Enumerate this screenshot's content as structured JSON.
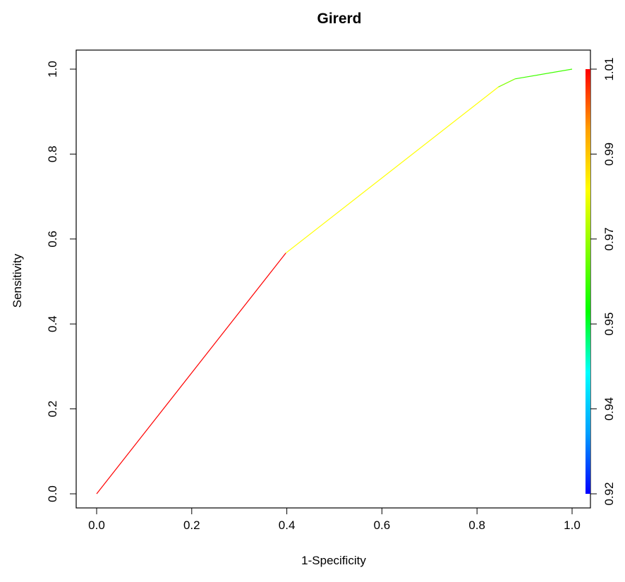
{
  "chart_data": {
    "type": "line",
    "title": "Girerd",
    "xlabel": "1-Specificity",
    "ylabel": "Sensitivity",
    "xlim": [
      0.0,
      1.0
    ],
    "ylim": [
      0.0,
      1.0
    ],
    "x_ticks": [
      "0.0",
      "0.2",
      "0.4",
      "0.6",
      "0.8",
      "1.0"
    ],
    "y_ticks": [
      "0.0",
      "0.2",
      "0.4",
      "0.6",
      "0.8",
      "1.0"
    ],
    "grid": false,
    "segments": [
      {
        "x1": 0.0,
        "y1": 0.0,
        "x2": 0.398,
        "y2": 0.567,
        "color": "#ff0000"
      },
      {
        "x1": 0.398,
        "y1": 0.567,
        "x2": 0.845,
        "y2": 0.958,
        "color": "#ffff00"
      },
      {
        "x1": 0.845,
        "y1": 0.958,
        "x2": 0.88,
        "y2": 0.977,
        "color": "#80ff00"
      },
      {
        "x1": 0.88,
        "y1": 0.977,
        "x2": 1.0,
        "y2": 1.0,
        "color": "#40ff00"
      }
    ],
    "colorbar": {
      "ticks": [
        "0.92",
        "0.94",
        "0.95",
        "0.97",
        "0.99",
        "1.01"
      ],
      "gradient_colors": [
        "#0000ff",
        "#00a0ff",
        "#00ffff",
        "#00ff00",
        "#80ff00",
        "#ffff00",
        "#ffa000",
        "#ff0000"
      ]
    }
  }
}
